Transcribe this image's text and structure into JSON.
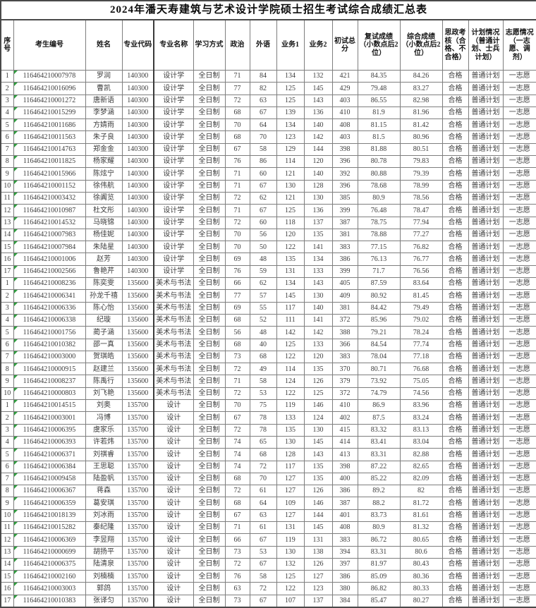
{
  "title": "2024年潘天寿建筑与艺术设计学院硕士招生考试综合成绩汇总表",
  "columns": [
    "序号",
    "考生编号",
    "姓名",
    "专业代码",
    "专业名称",
    "学习方式",
    "政治",
    "外语",
    "业务1",
    "业务2",
    "初试总分",
    "复试成绩（小数点后2位）",
    "综合成绩（小数点后2位）",
    "思政考核（合格、不合格）",
    "计划情况（普通计划、士兵计划）",
    "志愿情况（一志愿、调剂）"
  ],
  "colors": {
    "grid": "#7e7e7e",
    "text": "#3c3c3c",
    "corner_marker": "#2f9e3e"
  },
  "corner_marker_name": "cell-corner-marker",
  "rows": [
    [
      "1",
      "116464210007978",
      "罗润",
      "140300",
      "设计学",
      "全日制",
      "71",
      "84",
      "134",
      "132",
      "421",
      "84.35",
      "84.26",
      "合格",
      "普通计划",
      "一志愿"
    ],
    [
      "2",
      "116464210016096",
      "曹凯",
      "140300",
      "设计学",
      "全日制",
      "77",
      "82",
      "125",
      "145",
      "429",
      "79.48",
      "83.27",
      "合格",
      "普通计划",
      "一志愿"
    ],
    [
      "3",
      "116464210001272",
      "唐新语",
      "140300",
      "设计学",
      "全日制",
      "72",
      "63",
      "125",
      "143",
      "403",
      "86.55",
      "82.98",
      "合格",
      "普通计划",
      "一志愿"
    ],
    [
      "4",
      "116464210015299",
      "李梦涵",
      "140300",
      "设计学",
      "全日制",
      "68",
      "67",
      "139",
      "136",
      "410",
      "81.9",
      "81.96",
      "合格",
      "普通计划",
      "一志愿"
    ],
    [
      "5",
      "116464210011686",
      "方婧雨",
      "140300",
      "设计学",
      "全日制",
      "70",
      "64",
      "134",
      "140",
      "408",
      "81.15",
      "81.42",
      "合格",
      "普通计划",
      "一志愿"
    ],
    [
      "6",
      "116464210011563",
      "朱子良",
      "140300",
      "设计学",
      "全日制",
      "68",
      "70",
      "123",
      "142",
      "403",
      "81.5",
      "80.96",
      "合格",
      "普通计划",
      "一志愿"
    ],
    [
      "7",
      "116464210014763",
      "郑金金",
      "140300",
      "设计学",
      "全日制",
      "67",
      "58",
      "129",
      "144",
      "398",
      "81.88",
      "80.51",
      "合格",
      "普通计划",
      "一志愿"
    ],
    [
      "8",
      "116464210011825",
      "杨家耀",
      "140300",
      "设计学",
      "全日制",
      "76",
      "86",
      "114",
      "120",
      "396",
      "80.78",
      "79.83",
      "合格",
      "普通计划",
      "一志愿"
    ],
    [
      "9",
      "116464210015966",
      "陈炫宁",
      "140300",
      "设计学",
      "全日制",
      "71",
      "60",
      "121",
      "140",
      "392",
      "80.88",
      "79.39",
      "合格",
      "普通计划",
      "一志愿"
    ],
    [
      "10",
      "116464210001152",
      "徐伟航",
      "140300",
      "设计学",
      "全日制",
      "71",
      "67",
      "130",
      "128",
      "396",
      "78.68",
      "78.99",
      "合格",
      "普通计划",
      "一志愿"
    ],
    [
      "11",
      "116464210003432",
      "徐阗览",
      "140300",
      "设计学",
      "全日制",
      "72",
      "62",
      "121",
      "130",
      "385",
      "80.9",
      "78.56",
      "合格",
      "普通计划",
      "一志愿"
    ],
    [
      "12",
      "116464210010987",
      "杜文彤",
      "140300",
      "设计学",
      "全日制",
      "71",
      "67",
      "125",
      "136",
      "399",
      "76.48",
      "78.47",
      "合格",
      "普通计划",
      "一志愿"
    ],
    [
      "13",
      "116464210014532",
      "马晓锦",
      "140300",
      "设计学",
      "全日制",
      "72",
      "60",
      "118",
      "137",
      "387",
      "78.75",
      "77.94",
      "合格",
      "普通计划",
      "一志愿"
    ],
    [
      "14",
      "116464210007983",
      "杨佳妮",
      "140300",
      "设计学",
      "全日制",
      "70",
      "56",
      "120",
      "135",
      "381",
      "78.88",
      "77.27",
      "合格",
      "普通计划",
      "一志愿"
    ],
    [
      "15",
      "116464210007984",
      "朱陆星",
      "140300",
      "设计学",
      "全日制",
      "70",
      "50",
      "122",
      "141",
      "383",
      "77.15",
      "76.82",
      "合格",
      "普通计划",
      "一志愿"
    ],
    [
      "16",
      "116464210001006",
      "赵芳",
      "140300",
      "设计学",
      "全日制",
      "69",
      "48",
      "135",
      "134",
      "386",
      "76.13",
      "76.77",
      "合格",
      "普通计划",
      "一志愿"
    ],
    [
      "17",
      "116464210002566",
      "鲁艳芹",
      "140300",
      "设计学",
      "全日制",
      "76",
      "59",
      "131",
      "133",
      "399",
      "71.7",
      "76.56",
      "合格",
      "普通计划",
      "一志愿"
    ],
    [
      "1",
      "116464210008236",
      "陈奕雯",
      "135600",
      "美术与书法",
      "全日制",
      "66",
      "62",
      "134",
      "143",
      "405",
      "87.59",
      "83.64",
      "合格",
      "普通计划",
      "一志愿"
    ],
    [
      "2",
      "116464210006341",
      "孙龙千禧",
      "135600",
      "美术与书法",
      "全日制",
      "77",
      "57",
      "145",
      "130",
      "409",
      "80.92",
      "81.45",
      "合格",
      "普通计划",
      "一志愿"
    ],
    [
      "3",
      "116464210006336",
      "陈心怡",
      "135600",
      "美术与书法",
      "全日制",
      "69",
      "55",
      "117",
      "140",
      "381",
      "84.42",
      "79.49",
      "合格",
      "普通计划",
      "一志愿"
    ],
    [
      "4",
      "116464210006338",
      "纪璇",
      "135600",
      "美术与书法",
      "全日制",
      "68",
      "52",
      "111",
      "141",
      "372",
      "85.96",
      "79.02",
      "合格",
      "普通计划",
      "一志愿"
    ],
    [
      "5",
      "116464210001756",
      "蔺子涵",
      "135600",
      "美术与书法",
      "全日制",
      "56",
      "48",
      "142",
      "142",
      "388",
      "79.21",
      "78.24",
      "合格",
      "普通计划",
      "一志愿"
    ],
    [
      "6",
      "116464210010382",
      "邵一真",
      "135600",
      "美术与书法",
      "全日制",
      "68",
      "40",
      "125",
      "133",
      "366",
      "84.54",
      "77.74",
      "合格",
      "普通计划",
      "一志愿"
    ],
    [
      "7",
      "116464210003000",
      "贺琪皓",
      "135600",
      "美术与书法",
      "全日制",
      "73",
      "68",
      "122",
      "120",
      "383",
      "78.04",
      "77.18",
      "合格",
      "普通计划",
      "一志愿"
    ],
    [
      "8",
      "116464210000915",
      "赵建兰",
      "135600",
      "美术与书法",
      "全日制",
      "72",
      "49",
      "114",
      "135",
      "370",
      "80.71",
      "76.68",
      "合格",
      "普通计划",
      "一志愿"
    ],
    [
      "9",
      "116464210008237",
      "陈禹行",
      "135600",
      "美术与书法",
      "全日制",
      "71",
      "58",
      "124",
      "126",
      "379",
      "73.92",
      "75.05",
      "合格",
      "普通计划",
      "一志愿"
    ],
    [
      "10",
      "116464210000803",
      "刘飞艳",
      "135600",
      "美术与书法",
      "全日制",
      "72",
      "53",
      "122",
      "125",
      "372",
      "74.79",
      "74.56",
      "合格",
      "普通计划",
      "一志愿"
    ],
    [
      "1",
      "116464210014515",
      "刘奥",
      "135700",
      "设计",
      "全日制",
      "70",
      "75",
      "119",
      "146",
      "410",
      "86.9",
      "83.96",
      "合格",
      "普通计划",
      "一志愿"
    ],
    [
      "2",
      "116464210003001",
      "冯博",
      "135700",
      "设计",
      "全日制",
      "67",
      "78",
      "133",
      "124",
      "402",
      "87.5",
      "83.24",
      "合格",
      "普通计划",
      "一志愿"
    ],
    [
      "3",
      "116464210006395",
      "虞家乐",
      "135700",
      "设计",
      "全日制",
      "72",
      "78",
      "135",
      "130",
      "415",
      "83.32",
      "83.13",
      "合格",
      "普通计划",
      "一志愿"
    ],
    [
      "4",
      "116464210006393",
      "许若炜",
      "135700",
      "设计",
      "全日制",
      "74",
      "65",
      "130",
      "145",
      "414",
      "83.41",
      "83.04",
      "合格",
      "普通计划",
      "一志愿"
    ],
    [
      "5",
      "116464210006371",
      "刘祺睿",
      "135700",
      "设计",
      "全日制",
      "74",
      "68",
      "128",
      "143",
      "413",
      "83.31",
      "82.88",
      "合格",
      "普通计划",
      "一志愿"
    ],
    [
      "6",
      "116464210006384",
      "王思聪",
      "135700",
      "设计",
      "全日制",
      "74",
      "72",
      "117",
      "135",
      "398",
      "87.22",
      "82.65",
      "合格",
      "普通计划",
      "一志愿"
    ],
    [
      "7",
      "116464210009458",
      "陆盈帆",
      "135700",
      "设计",
      "全日制",
      "68",
      "70",
      "127",
      "135",
      "400",
      "85.22",
      "82.09",
      "合格",
      "普通计划",
      "一志愿"
    ],
    [
      "8",
      "116464210006367",
      "蒋森",
      "135700",
      "设计",
      "全日制",
      "72",
      "61",
      "127",
      "126",
      "386",
      "89.2",
      "82",
      "合格",
      "普通计划",
      "一志愿"
    ],
    [
      "9",
      "116464210006359",
      "葛安琪",
      "135700",
      "设计",
      "全日制",
      "68",
      "64",
      "109",
      "146",
      "387",
      "88.2",
      "81.72",
      "合格",
      "普通计划",
      "一志愿"
    ],
    [
      "10",
      "116464210018139",
      "刘冰雨",
      "135700",
      "设计",
      "全日制",
      "67",
      "63",
      "127",
      "144",
      "401",
      "83.73",
      "81.61",
      "合格",
      "普通计划",
      "一志愿"
    ],
    [
      "11",
      "116464210015282",
      "秦纪隆",
      "135700",
      "设计",
      "全日制",
      "71",
      "61",
      "131",
      "145",
      "408",
      "80.9",
      "81.32",
      "合格",
      "普通计划",
      "一志愿"
    ],
    [
      "12",
      "116464210006369",
      "李昱翔",
      "135700",
      "设计",
      "全日制",
      "66",
      "67",
      "119",
      "131",
      "383",
      "86.72",
      "80.65",
      "合格",
      "普通计划",
      "一志愿"
    ],
    [
      "13",
      "116464210000699",
      "胡扬平",
      "135700",
      "设计",
      "全日制",
      "73",
      "53",
      "130",
      "138",
      "394",
      "83.31",
      "80.6",
      "合格",
      "普通计划",
      "一志愿"
    ],
    [
      "14",
      "116464210006375",
      "陆清泉",
      "135700",
      "设计",
      "全日制",
      "72",
      "67",
      "132",
      "126",
      "397",
      "81.97",
      "80.43",
      "合格",
      "普通计划",
      "一志愿"
    ],
    [
      "15",
      "116464210002160",
      "刘楠楠",
      "135700",
      "设计",
      "全日制",
      "76",
      "58",
      "125",
      "127",
      "386",
      "85.09",
      "80.36",
      "合格",
      "普通计划",
      "一志愿"
    ],
    [
      "16",
      "116464210003003",
      "郭鸽",
      "135700",
      "设计",
      "全日制",
      "63",
      "72",
      "122",
      "123",
      "380",
      "86.82",
      "80.33",
      "合格",
      "普通计划",
      "一志愿"
    ],
    [
      "17",
      "116464210010383",
      "张译匀",
      "135700",
      "设计",
      "全日制",
      "73",
      "67",
      "107",
      "137",
      "384",
      "85.47",
      "80.27",
      "合格",
      "普通计划",
      "一志愿"
    ]
  ]
}
